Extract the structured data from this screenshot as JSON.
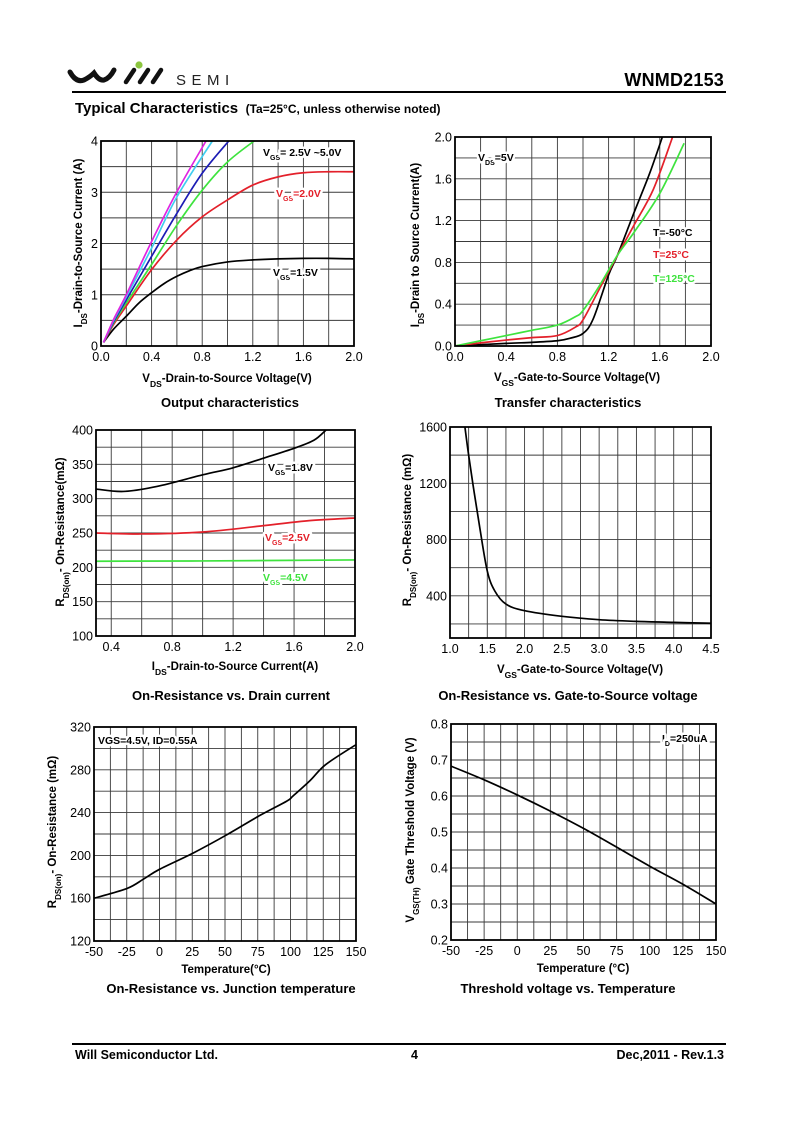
{
  "header": {
    "logo_text": "SEMI",
    "part_number": "WNMD2153",
    "section_title": "Typical Characteristics",
    "section_note": "(Ta=25°C, unless otherwise noted)"
  },
  "footer": {
    "company": "Will Semiconductor Ltd.",
    "page_number": "4",
    "revision": "Dec,2011  -  Rev.1.3"
  },
  "colors": {
    "logo_dot": "#8cc63f",
    "text": "#000000",
    "grid": "#3a3a3a"
  },
  "chart_data": [
    {
      "type": "line",
      "title": "Output characteristics",
      "xlabel": {
        "main": "V",
        "sub": "DS",
        "rest": "-Drain-to-Source Voltage(V)"
      },
      "ylabel": {
        "main": "I",
        "sub": "DS",
        "rest": "-Drain-to-Source Current (A)"
      },
      "xlim": [
        0,
        2.0
      ],
      "ylim": [
        0,
        4
      ],
      "xticks": [
        0,
        0.4,
        0.8,
        1.2,
        1.6,
        2.0
      ],
      "xtick_labels": [
        "0.0",
        "0.4",
        "0.8",
        "1.2",
        "1.6",
        "2.0"
      ],
      "yticks": [
        0,
        1,
        2,
        3,
        4
      ],
      "ytick_labels": [
        "0",
        "1",
        "2",
        "3",
        "4"
      ],
      "grid": {
        "x_step": 0.2,
        "y_step": 0.5
      },
      "series": [
        {
          "name": "VGS=1.5V",
          "color": "#000000",
          "points": [
            [
              0.02,
              0.07
            ],
            [
              0.1,
              0.33
            ],
            [
              0.2,
              0.58
            ],
            [
              0.3,
              0.84
            ],
            [
              0.4,
              1.04
            ],
            [
              0.5,
              1.22
            ],
            [
              0.6,
              1.36
            ],
            [
              0.7,
              1.47
            ],
            [
              0.8,
              1.55
            ],
            [
              1.0,
              1.64
            ],
            [
              1.2,
              1.68
            ],
            [
              1.4,
              1.7
            ],
            [
              1.6,
              1.71
            ],
            [
              1.8,
              1.71
            ],
            [
              2.0,
              1.7
            ]
          ]
        },
        {
          "name": "VGS=2.0V",
          "color": "#e3202a",
          "points": [
            [
              0.02,
              0.07
            ],
            [
              0.1,
              0.42
            ],
            [
              0.2,
              0.78
            ],
            [
              0.4,
              1.49
            ],
            [
              0.6,
              2.07
            ],
            [
              0.8,
              2.52
            ],
            [
              1.0,
              2.85
            ],
            [
              1.2,
              3.14
            ],
            [
              1.4,
              3.3
            ],
            [
              1.6,
              3.38
            ],
            [
              1.8,
              3.4
            ],
            [
              2.0,
              3.4
            ]
          ]
        },
        {
          "name": "VGS 2.5V~5.0V (green)",
          "color": "#3ee33e",
          "points": [
            [
              0.02,
              0.07
            ],
            [
              0.1,
              0.45
            ],
            [
              0.2,
              0.84
            ],
            [
              0.4,
              1.59
            ],
            [
              0.6,
              2.36
            ],
            [
              0.8,
              3.04
            ],
            [
              1.0,
              3.59
            ],
            [
              1.21,
              4.0
            ]
          ]
        },
        {
          "name": "VGS 2.5V~5.0V (blue)",
          "color": "#1c1cb4",
          "points": [
            [
              0.02,
              0.07
            ],
            [
              0.1,
              0.47
            ],
            [
              0.2,
              0.9
            ],
            [
              0.4,
              1.75
            ],
            [
              0.6,
              2.59
            ],
            [
              0.8,
              3.37
            ],
            [
              1.01,
              4.0
            ]
          ]
        },
        {
          "name": "VGS 2.5V~5.0V (cyan)",
          "color": "#3fcdf0",
          "points": [
            [
              0.02,
              0.07
            ],
            [
              0.1,
              0.5
            ],
            [
              0.2,
              0.96
            ],
            [
              0.4,
              1.91
            ],
            [
              0.6,
              2.91
            ],
            [
              0.88,
              4.0
            ]
          ]
        },
        {
          "name": "VGS 2.5V~5.0V (magenta)",
          "color": "#e024e0",
          "points": [
            [
              0.02,
              0.07
            ],
            [
              0.1,
              0.52
            ],
            [
              0.2,
              1.0
            ],
            [
              0.4,
              2.04
            ],
            [
              0.6,
              3.01
            ],
            [
              0.83,
              4.0
            ]
          ]
        }
      ],
      "annotations": [
        {
          "main": "V",
          "sub": "GS",
          "rest": "= 2.5V ~5.0V",
          "color": "#000000"
        },
        {
          "main": "V",
          "sub": "GS",
          "rest": "=2.0V",
          "color": "#e3202a"
        },
        {
          "main": "V",
          "sub": "GS",
          "rest": "=1.5V",
          "color": "#000000"
        }
      ]
    },
    {
      "type": "line",
      "title": "Transfer characteristics",
      "xlabel": {
        "main": "V",
        "sub": "GS",
        "rest": "-Gate-to-Source Voltage(V)"
      },
      "ylabel": {
        "main": "I",
        "sub": "DS",
        "rest": "-Drain to Source Current(A)"
      },
      "xlim": [
        0,
        2.0
      ],
      "ylim": [
        0,
        2.0
      ],
      "xticks": [
        0,
        0.4,
        0.8,
        1.2,
        1.6,
        2.0
      ],
      "xtick_labels": [
        "0.0",
        "0.4",
        "0.8",
        "1.2",
        "1.6",
        "2.0"
      ],
      "yticks": [
        0,
        0.4,
        0.8,
        1.2,
        1.6,
        2.0
      ],
      "ytick_labels": [
        "0.0",
        "0.4",
        "0.8",
        "1.2",
        "1.6",
        "2.0"
      ],
      "grid": {
        "x_step": 0.2,
        "y_step": 0.2
      },
      "series": [
        {
          "name": "T=-50°C",
          "color": "#000000",
          "points": [
            [
              0,
              0
            ],
            [
              0.4,
              0.025
            ],
            [
              0.6,
              0.035
            ],
            [
              0.8,
              0.05
            ],
            [
              0.9,
              0.075
            ],
            [
              1.0,
              0.12
            ],
            [
              1.08,
              0.26
            ],
            [
              1.2,
              0.68
            ],
            [
              1.27,
              0.87
            ],
            [
              1.4,
              1.28
            ],
            [
              1.52,
              1.65
            ],
            [
              1.62,
              2.0
            ]
          ]
        },
        {
          "name": "T=25°C",
          "color": "#e3202a",
          "points": [
            [
              0,
              0
            ],
            [
              0.2,
              0.03
            ],
            [
              0.4,
              0.057
            ],
            [
              0.6,
              0.08
            ],
            [
              0.8,
              0.1
            ],
            [
              0.94,
              0.18
            ],
            [
              1.0,
              0.25
            ],
            [
              1.13,
              0.55
            ],
            [
              1.27,
              0.87
            ],
            [
              1.4,
              1.16
            ],
            [
              1.55,
              1.5
            ],
            [
              1.7,
              2.0
            ]
          ]
        },
        {
          "name": "T=125°C",
          "color": "#3ee33e",
          "points": [
            [
              0,
              0
            ],
            [
              0.2,
              0.05
            ],
            [
              0.4,
              0.1
            ],
            [
              0.6,
              0.15
            ],
            [
              0.8,
              0.2
            ],
            [
              0.94,
              0.28
            ],
            [
              1.0,
              0.34
            ],
            [
              1.13,
              0.58
            ],
            [
              1.27,
              0.87
            ],
            [
              1.4,
              1.09
            ],
            [
              1.6,
              1.46
            ],
            [
              1.79,
              1.94
            ]
          ]
        }
      ],
      "annotations": [
        {
          "main": "V",
          "sub": "DS",
          "rest": "=5V",
          "color": "#000000"
        },
        {
          "main": "T=-50°C",
          "sub": "",
          "rest": "",
          "color": "#000000"
        },
        {
          "main": "T=25°C",
          "sub": "",
          "rest": "",
          "color": "#e3202a"
        },
        {
          "main": "T=125°C",
          "sub": "",
          "rest": "",
          "color": "#3ee33e"
        }
      ]
    },
    {
      "type": "line",
      "title": "On-Resistance vs. Drain current",
      "xlabel": {
        "main": "I",
        "sub": "DS",
        "rest": "-Drain-to-Source Current(A)"
      },
      "ylabel": {
        "main": "R",
        "sub": "DS(on)",
        "rest": "- On-Resistance(mΩ)"
      },
      "xlim": [
        0.3,
        2.0
      ],
      "ylim": [
        100,
        400
      ],
      "xticks": [
        0.4,
        0.8,
        1.2,
        1.6,
        2.0
      ],
      "xtick_labels": [
        "0.4",
        "0.8",
        "1.2",
        "1.6",
        "2.0"
      ],
      "yticks": [
        100,
        150,
        200,
        250,
        300,
        350,
        400
      ],
      "ytick_labels": [
        "100",
        "150",
        "200",
        "250",
        "300",
        "350",
        "400"
      ],
      "grid": {
        "x_step": 0.2,
        "y_step": 25
      },
      "series": [
        {
          "name": "VGS=1.8V",
          "color": "#000000",
          "points": [
            [
              0.3,
              314
            ],
            [
              0.48,
              310.5
            ],
            [
              0.7,
              317.8
            ],
            [
              1.0,
              334.7
            ],
            [
              1.2,
              345
            ],
            [
              1.4,
              359
            ],
            [
              1.6,
              373.4
            ],
            [
              1.73,
              385
            ],
            [
              1.81,
              400
            ]
          ]
        },
        {
          "name": "VGS=2.5V",
          "color": "#e3202a",
          "points": [
            [
              0.3,
              250
            ],
            [
              0.6,
              248.6
            ],
            [
              1.0,
              251.5
            ],
            [
              1.4,
              260.7
            ],
            [
              1.7,
              268
            ],
            [
              2.0,
              271.8
            ]
          ]
        },
        {
          "name": "VGS=4.5V",
          "color": "#3ee33e",
          "points": [
            [
              0.3,
              208.9
            ],
            [
              1.0,
              209.3
            ],
            [
              2.0,
              210.8
            ]
          ]
        }
      ],
      "annotations": [
        {
          "main": "V",
          "sub": "GS",
          "rest": "=1.8V",
          "color": "#000000"
        },
        {
          "main": "V",
          "sub": "GS",
          "rest": "=2.5V",
          "color": "#e3202a"
        },
        {
          "main": "V",
          "sub": "GS",
          "rest": "=4.5V",
          "color": "#3ee33e"
        }
      ]
    },
    {
      "type": "line",
      "title": "On-Resistance vs. Gate-to-Source voltage",
      "xlabel": {
        "main": "V",
        "sub": "GS",
        "rest": "-Gate-to-Source Voltage(V)"
      },
      "ylabel": {
        "main": "R",
        "sub": "DS(on)",
        "rest": "- On-Resistance (mΩ)"
      },
      "xlim": [
        1.0,
        4.5
      ],
      "ylim": [
        100,
        1600
      ],
      "xticks": [
        1.0,
        1.5,
        2.0,
        2.5,
        3.0,
        3.5,
        4.0,
        4.5
      ],
      "xtick_labels": [
        "1.0",
        "1.5",
        "2.0",
        "2.5",
        "3.0",
        "3.5",
        "4.0",
        "4.5"
      ],
      "yticks": [
        400,
        800,
        1200,
        1600
      ],
      "ytick_labels": [
        "400",
        "800",
        "1200",
        "1600"
      ],
      "grid": {
        "x_step": 0.25,
        "y_step": 200
      },
      "series": [
        {
          "name": "RDS(on) vs VGS",
          "color": "#000000",
          "points": [
            [
              1.2,
              1600
            ],
            [
              1.25,
              1400
            ],
            [
              1.32,
              1150
            ],
            [
              1.4,
              882
            ],
            [
              1.5,
              576
            ],
            [
              1.6,
              435
            ],
            [
              1.75,
              341
            ],
            [
              2.0,
              294
            ],
            [
              2.5,
              254
            ],
            [
              3.0,
              230
            ],
            [
              3.5,
              218
            ],
            [
              4.0,
              211
            ],
            [
              4.5,
              205
            ]
          ]
        }
      ],
      "annotations": []
    },
    {
      "type": "line",
      "title": "On-Resistance vs. Junction temperature",
      "xlabel": {
        "main": "Temperature(°C)",
        "sub": "",
        "rest": ""
      },
      "ylabel": {
        "main": "R",
        "sub": "DS(on)",
        "rest": "- On-Resistance (mΩ)"
      },
      "xlim": [
        -50,
        150
      ],
      "ylim": [
        120,
        320
      ],
      "xticks": [
        -50,
        -25,
        0,
        25,
        50,
        75,
        100,
        125,
        150
      ],
      "xtick_labels": [
        "-50",
        "-25",
        "0",
        "25",
        "50",
        "75",
        "100",
        "125",
        "150"
      ],
      "yticks": [
        120,
        160,
        200,
        240,
        280,
        320
      ],
      "ytick_labels": [
        "120",
        "160",
        "200",
        "240",
        "280",
        "320"
      ],
      "grid": {
        "x_step": 12.5,
        "y_step": 20
      },
      "series": [
        {
          "name": "VGS=4.5V, ID=0.55A",
          "color": "#000000",
          "points": [
            [
              -50,
              160
            ],
            [
              -25,
              169
            ],
            [
              -12,
              178
            ],
            [
              0,
              187
            ],
            [
              26,
              202.4
            ],
            [
              51,
              219
            ],
            [
              77,
              237.6
            ],
            [
              97,
              250.6
            ],
            [
              102,
              255.6
            ],
            [
              115,
              270
            ],
            [
              127,
              285
            ],
            [
              150,
              303.5
            ]
          ]
        }
      ],
      "annotations": [
        {
          "main": "VGS=4.5V,  ID=0.55A",
          "sub": "",
          "rest": "",
          "color": "#000000"
        }
      ]
    },
    {
      "type": "line",
      "title": "Threshold voltage vs. Temperature",
      "xlabel": {
        "main": "Temperature (°C)",
        "sub": "",
        "rest": ""
      },
      "ylabel": {
        "main": "V",
        "sub": "GS(TH)",
        "rest": " Gate Threshold Voltage (V)"
      },
      "xlim": [
        -50,
        150
      ],
      "ylim": [
        0.2,
        0.8
      ],
      "xticks": [
        -50,
        -25,
        0,
        25,
        50,
        75,
        100,
        125,
        150
      ],
      "xtick_labels": [
        "-50",
        "-25",
        "0",
        "25",
        "50",
        "75",
        "100",
        "125",
        "150"
      ],
      "yticks": [
        0.2,
        0.3,
        0.4,
        0.5,
        0.6,
        0.7,
        0.8
      ],
      "ytick_labels": [
        "0.2",
        "0.3",
        "0.4",
        "0.5",
        "0.6",
        "0.7",
        "0.8"
      ],
      "grid": {
        "x_step": 12.5,
        "y_step": 0.05
      },
      "series": [
        {
          "name": "ID=250uA",
          "color": "#000000",
          "points": [
            [
              -50,
              0.683
            ],
            [
              -25,
              0.645
            ],
            [
              0,
              0.603
            ],
            [
              25,
              0.558
            ],
            [
              50,
              0.51
            ],
            [
              75,
              0.458
            ],
            [
              100,
              0.405
            ],
            [
              125,
              0.355
            ],
            [
              150,
              0.3
            ]
          ]
        }
      ],
      "annotations": [
        {
          "main": "I",
          "sub": "D",
          "rest": "=250uA",
          "color": "#000000"
        }
      ]
    }
  ]
}
